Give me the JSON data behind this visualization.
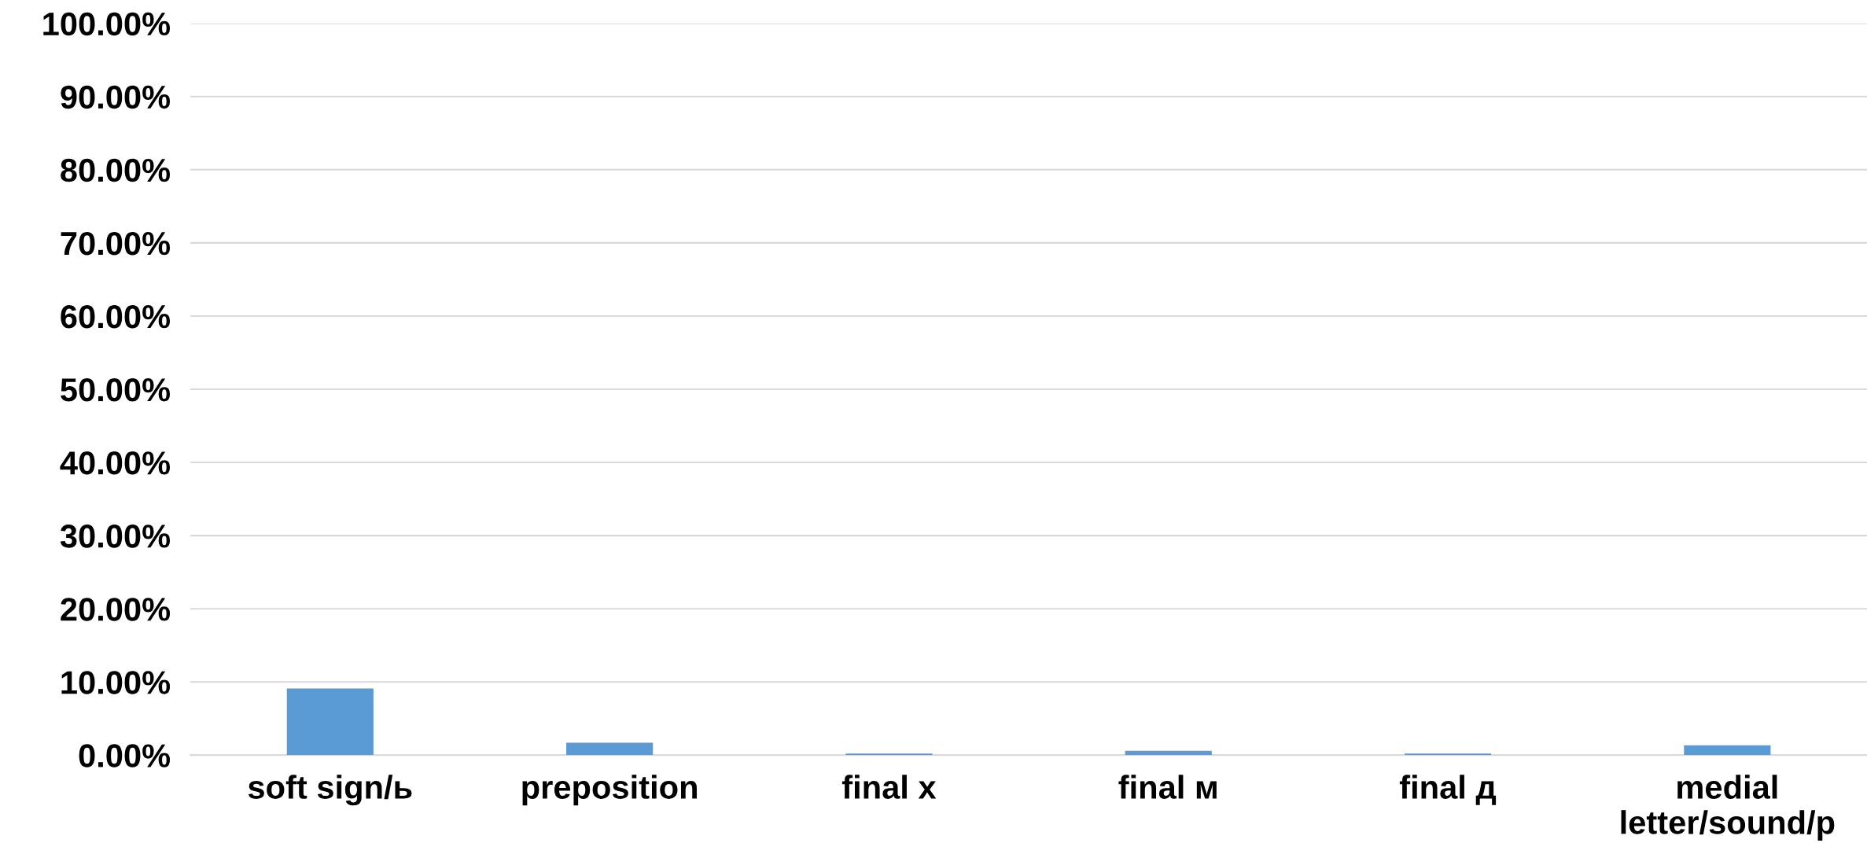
{
  "chart_data": {
    "type": "bar",
    "categories": [
      "soft sign/ь",
      "preposition",
      "final x",
      "final м",
      "final д",
      "medial letter/sound/p"
    ],
    "values": [
      9.1,
      1.7,
      0.23,
      0.6,
      0.22,
      1.35
    ],
    "color": "#5b9bd5",
    "ylim": [
      0,
      100
    ],
    "yticks": [
      {
        "value": 0,
        "label": "0.00%"
      },
      {
        "value": 10,
        "label": "10.00%"
      },
      {
        "value": 20,
        "label": "20.00%"
      },
      {
        "value": 30,
        "label": "30.00%"
      },
      {
        "value": 40,
        "label": "40.00%"
      },
      {
        "value": 50,
        "label": "50.00%"
      },
      {
        "value": 60,
        "label": "60.00%"
      },
      {
        "value": 70,
        "label": "70.00%"
      },
      {
        "value": 80,
        "label": "80.00%"
      },
      {
        "value": 90,
        "label": "90.00%"
      },
      {
        "value": 100,
        "label": "100.00%"
      }
    ],
    "grid": "y",
    "legend": false
  }
}
